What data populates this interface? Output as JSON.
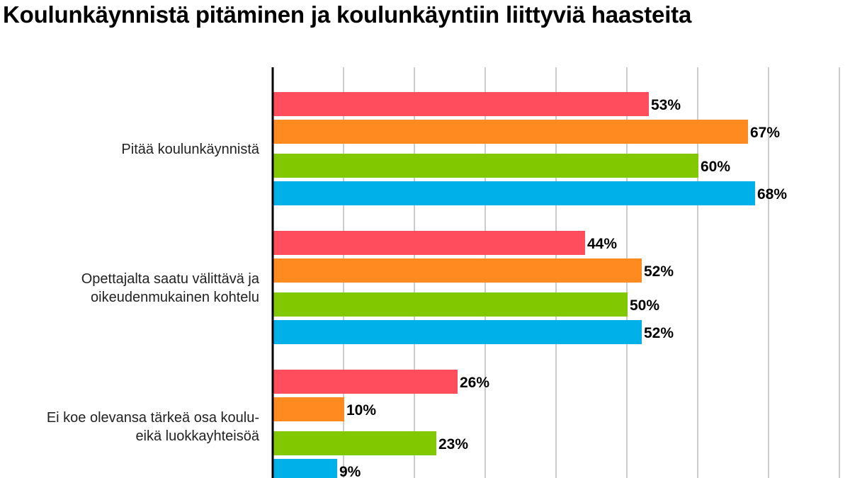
{
  "chart_data": {
    "type": "bar",
    "orientation": "horizontal",
    "title": "Koulunkäynnistä pitäminen ja koulunkäyntiin liittyviä haasteita",
    "categories": [
      [
        "Pitää koulunkäynnistä"
      ],
      [
        "Opettajalta saatu välittävä ja",
        "oikeudenmukainen kohtelu"
      ],
      [
        "Ei koe olevansa tärkeä osa koulu-",
        "eikä luokkayhteisöä"
      ]
    ],
    "series": [
      {
        "values": [
          53,
          44,
          26
        ],
        "color": "#ff4d5e"
      },
      {
        "values": [
          67,
          52,
          10
        ],
        "color": "#ff8a1f"
      },
      {
        "values": [
          60,
          50,
          23
        ],
        "color": "#82c800"
      },
      {
        "values": [
          68,
          52,
          9
        ],
        "color": "#00b0e8"
      }
    ],
    "value_labels": [
      [
        "53%",
        "67%",
        "60%",
        "68%"
      ],
      [
        "44%",
        "52%",
        "50%",
        "52%"
      ],
      [
        "26%",
        "10%",
        "23%",
        "9%"
      ]
    ],
    "xlim": [
      0,
      80
    ],
    "grid": true,
    "legend": "none"
  }
}
